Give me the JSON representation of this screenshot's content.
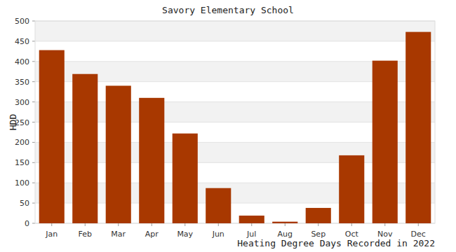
{
  "chart_data": {
    "type": "bar",
    "title": "Savory Elementary School",
    "x_label": "Heating Degree Days Recorded in 2022",
    "y_label": "HDD",
    "categories": [
      "Jan",
      "Feb",
      "Mar",
      "Apr",
      "May",
      "Jun",
      "Jul",
      "Aug",
      "Sep",
      "Oct",
      "Nov",
      "Dec"
    ],
    "values": [
      428,
      369,
      340,
      310,
      222,
      87,
      19,
      4,
      38,
      168,
      402,
      473
    ],
    "color": "#a83800",
    "ylim": [
      0,
      500
    ],
    "yticks": [
      0,
      50,
      100,
      150,
      200,
      250,
      300,
      350,
      400,
      450,
      500
    ],
    "grid": true
  }
}
